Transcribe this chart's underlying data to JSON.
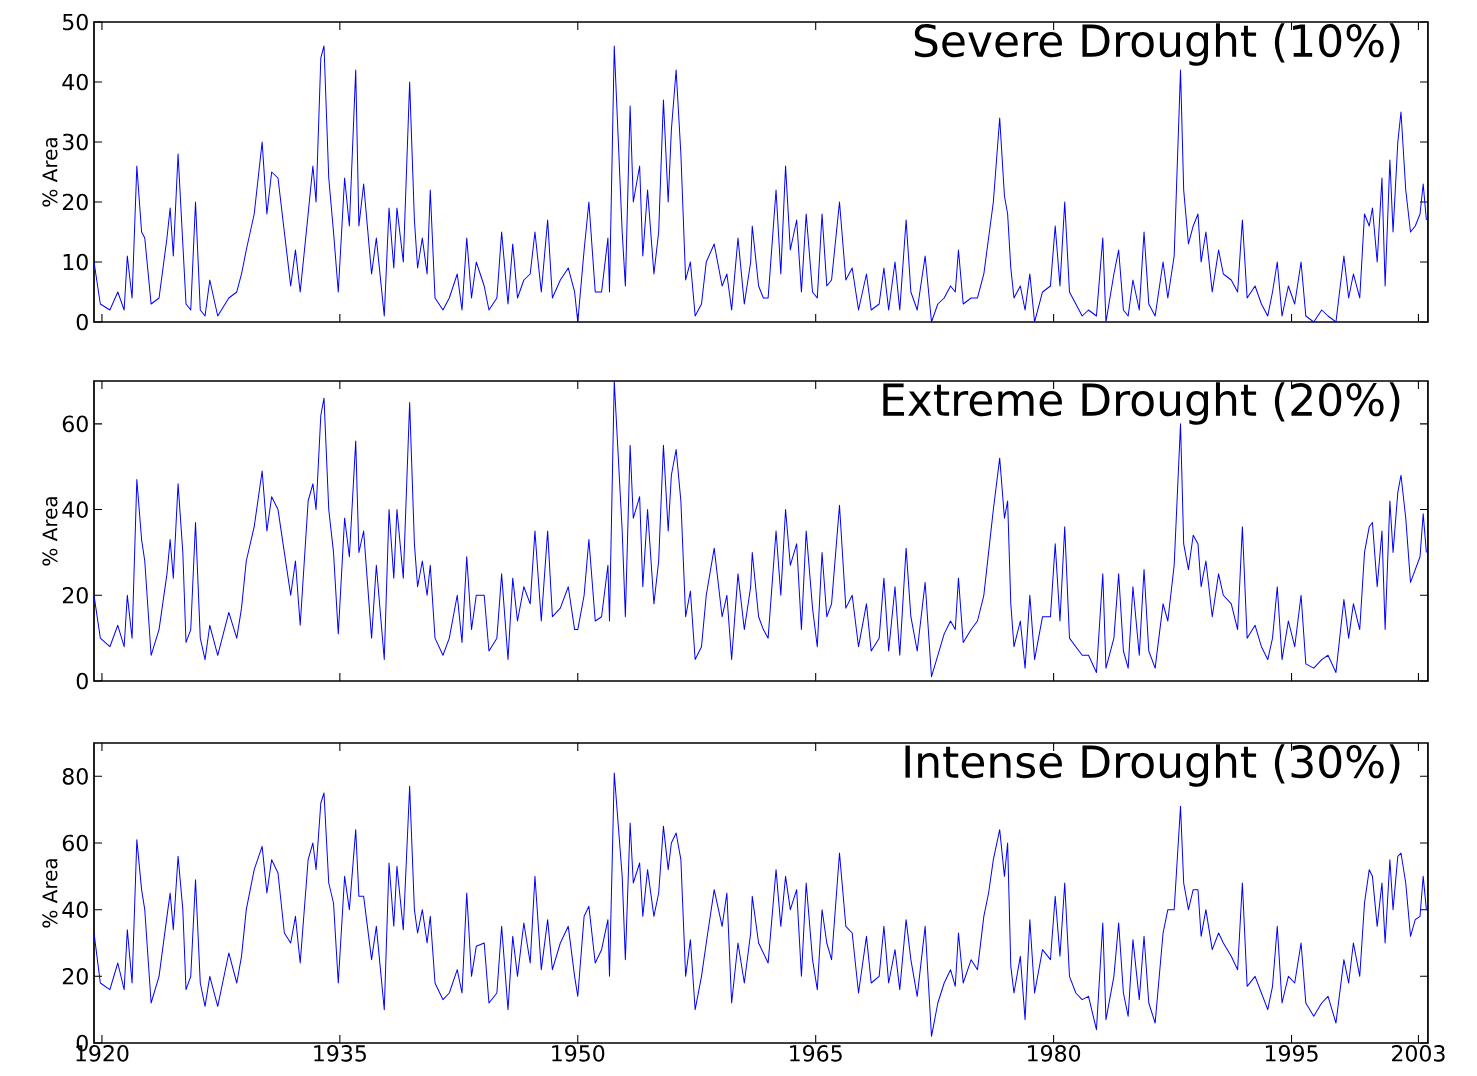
{
  "chart_data": [
    {
      "type": "line",
      "title": "Severe Drought (10%)",
      "ylabel": "% Area",
      "xlim": [
        1919.5,
        2003.6
      ],
      "ylim": [
        0,
        50
      ],
      "xticks": [
        1920,
        1935,
        1950,
        1965,
        1980,
        1995,
        2003
      ],
      "yticks": [
        0,
        10,
        20,
        30,
        40,
        50
      ],
      "tick_labels": "y",
      "x": [
        1919.5,
        1919.9,
        1920.5,
        1921.0,
        1921.4,
        1921.6,
        1921.9,
        1922.2,
        1922.5,
        1922.7,
        1923.1,
        1923.6,
        1924.1,
        1924.3,
        1924.5,
        1924.8,
        1925.1,
        1925.3,
        1925.6,
        1925.9,
        1926.2,
        1926.5,
        1926.8,
        1927.3,
        1928.0,
        1928.5,
        1928.8,
        1929.1,
        1929.6,
        1930.1,
        1930.4,
        1930.7,
        1931.1,
        1931.5,
        1931.9,
        1932.2,
        1932.5,
        1933.0,
        1933.3,
        1933.5,
        1933.8,
        1934.0,
        1934.3,
        1934.6,
        1934.9,
        1935.3,
        1935.6,
        1936.0,
        1936.2,
        1936.5,
        1937.0,
        1937.3,
        1937.8,
        1938.1,
        1938.4,
        1938.6,
        1939.0,
        1939.4,
        1939.7,
        1939.9,
        1940.2,
        1940.5,
        1940.7,
        1941.0,
        1941.5,
        1941.9,
        1942.4,
        1942.7,
        1943.0,
        1943.3,
        1943.6,
        1944.1,
        1944.4,
        1944.9,
        1945.2,
        1945.6,
        1945.9,
        1946.2,
        1946.6,
        1947.0,
        1947.3,
        1947.7,
        1948.1,
        1948.4,
        1948.9,
        1949.4,
        1949.8,
        1950.0,
        1950.4,
        1950.7,
        1951.1,
        1951.5,
        1951.9,
        1952.0,
        1952.3,
        1952.8,
        1953.0,
        1953.3,
        1953.5,
        1953.9,
        1954.1,
        1954.4,
        1954.8,
        1955.1,
        1955.4,
        1955.7,
        1955.9,
        1956.2,
        1956.5,
        1956.8,
        1957.1,
        1957.4,
        1957.8,
        1958.1,
        1958.6,
        1959.1,
        1959.4,
        1959.7,
        1960.1,
        1960.5,
        1960.9,
        1961.0,
        1961.4,
        1961.7,
        1962.0,
        1962.5,
        1962.8,
        1963.1,
        1963.4,
        1963.8,
        1964.1,
        1964.4,
        1964.8,
        1965.1,
        1965.4,
        1965.7,
        1966.0,
        1966.5,
        1966.9,
        1967.3,
        1967.7,
        1968.2,
        1968.5,
        1969.0,
        1969.3,
        1969.6,
        1970.0,
        1970.3,
        1970.7,
        1971.0,
        1971.4,
        1971.9,
        1972.3,
        1972.7,
        1973.1,
        1973.5,
        1973.8,
        1974.0,
        1974.3,
        1974.8,
        1975.2,
        1975.6,
        1975.9,
        1976.2,
        1976.6,
        1976.9,
        1977.1,
        1977.3,
        1977.5,
        1977.9,
        1978.2,
        1978.5,
        1978.8,
        1979.3,
        1979.8,
        1980.1,
        1980.4,
        1980.7,
        1981.0,
        1981.4,
        1981.8,
        1982.2,
        1982.7,
        1983.1,
        1983.3,
        1983.8,
        1984.1,
        1984.4,
        1984.7,
        1985.0,
        1985.4,
        1985.7,
        1986.0,
        1986.4,
        1986.9,
        1987.2,
        1987.6,
        1988.0,
        1988.2,
        1988.5,
        1988.8,
        1989.1,
        1989.3,
        1989.6,
        1990.0,
        1990.4,
        1990.7,
        1991.2,
        1991.6,
        1991.9,
        1992.2,
        1992.7,
        1993.1,
        1993.5,
        1993.8,
        1994.1,
        1994.4,
        1994.8,
        1995.2,
        1995.6,
        1995.9,
        1996.4,
        1996.9,
        1997.3,
        1997.8,
        1998.3,
        1998.6,
        1998.9,
        1999.3,
        1999.6,
        1999.9,
        2000.1,
        2000.4,
        2000.7,
        2000.9,
        2001.2,
        2001.4,
        2001.7,
        2001.9,
        2002.2,
        2002.5,
        2002.8,
        2003.1,
        2003.3,
        2003.5
      ],
      "series": [
        {
          "color": "#0000ff",
          "values": [
            10,
            3,
            2,
            5,
            2,
            11,
            4,
            26,
            15,
            14,
            3,
            4,
            14,
            19,
            11,
            28,
            13,
            3,
            2,
            20,
            2,
            1,
            7,
            1,
            4,
            5,
            8,
            12,
            18,
            30,
            18,
            25,
            24,
            15,
            6,
            12,
            5,
            18,
            26,
            20,
            44,
            46,
            24,
            15,
            5,
            24,
            16,
            42,
            16,
            23,
            8,
            14,
            1,
            19,
            9,
            19,
            10,
            40,
            17,
            9,
            14,
            8,
            22,
            4,
            2,
            4,
            8,
            2,
            14,
            4,
            10,
            6,
            2,
            4,
            15,
            3,
            13,
            4,
            7,
            8,
            15,
            5,
            17,
            4,
            7,
            9,
            5,
            0,
            12,
            20,
            5,
            5,
            14,
            5,
            46,
            15,
            6,
            36,
            20,
            26,
            11,
            22,
            8,
            15,
            37,
            20,
            32,
            42,
            28,
            7,
            10,
            1,
            3,
            10,
            13,
            6,
            8,
            2,
            14,
            3,
            10,
            16,
            6,
            4,
            4,
            22,
            8,
            26,
            12,
            17,
            5,
            18,
            5,
            4,
            18,
            6,
            7,
            20,
            7,
            9,
            2,
            8,
            2,
            3,
            9,
            2,
            10,
            2,
            17,
            5,
            2,
            11,
            0,
            3,
            4,
            6,
            5,
            12,
            3,
            4,
            4,
            8,
            14,
            20,
            34,
            21,
            18,
            9,
            4,
            6,
            2,
            8,
            0,
            5,
            6,
            16,
            6,
            20,
            5,
            3,
            1,
            2,
            1,
            14,
            0,
            8,
            12,
            2,
            1,
            7,
            2,
            15,
            3,
            1,
            10,
            4,
            11,
            42,
            22,
            13,
            16,
            18,
            10,
            15,
            5,
            12,
            8,
            7,
            5,
            17,
            4,
            6,
            3,
            1,
            5,
            10,
            1,
            6,
            3,
            10,
            1,
            0,
            2,
            1,
            0,
            11,
            4,
            8,
            4,
            18,
            16,
            19,
            10,
            24,
            6,
            27,
            15,
            30,
            35,
            22,
            15,
            16,
            18,
            23,
            17
          ]
        }
      ]
    },
    {
      "type": "line",
      "title": "Extreme Drought (20%)",
      "ylabel": "% Area",
      "xlim": [
        1919.5,
        2003.6
      ],
      "ylim": [
        0,
        70
      ],
      "xticks": [
        1920,
        1935,
        1950,
        1965,
        1980,
        1995,
        2003
      ],
      "yticks": [
        0,
        20,
        40,
        60
      ],
      "tick_labels": "y",
      "x": [
        1919.5,
        1919.9,
        1920.5,
        1921.0,
        1921.4,
        1921.6,
        1921.9,
        1922.2,
        1922.5,
        1922.7,
        1923.1,
        1923.6,
        1924.1,
        1924.3,
        1924.5,
        1924.8,
        1925.1,
        1925.3,
        1925.6,
        1925.9,
        1926.2,
        1926.5,
        1926.8,
        1927.3,
        1928.0,
        1928.5,
        1928.8,
        1929.1,
        1929.6,
        1930.1,
        1930.4,
        1930.7,
        1931.1,
        1931.5,
        1931.9,
        1932.2,
        1932.5,
        1933.0,
        1933.3,
        1933.5,
        1933.8,
        1934.0,
        1934.3,
        1934.6,
        1934.9,
        1935.3,
        1935.6,
        1936.0,
        1936.2,
        1936.5,
        1937.0,
        1937.3,
        1937.8,
        1938.1,
        1938.4,
        1938.6,
        1939.0,
        1939.4,
        1939.7,
        1939.9,
        1940.2,
        1940.5,
        1940.7,
        1941.0,
        1941.5,
        1941.9,
        1942.4,
        1942.7,
        1943.0,
        1943.3,
        1943.6,
        1944.1,
        1944.4,
        1944.9,
        1945.2,
        1945.6,
        1945.9,
        1946.2,
        1946.6,
        1947.0,
        1947.3,
        1947.7,
        1948.1,
        1948.4,
        1948.9,
        1949.4,
        1949.8,
        1950.0,
        1950.4,
        1950.7,
        1951.1,
        1951.5,
        1951.9,
        1952.0,
        1952.3,
        1952.8,
        1953.0,
        1953.3,
        1953.5,
        1953.9,
        1954.1,
        1954.4,
        1954.8,
        1955.1,
        1955.4,
        1955.7,
        1955.9,
        1956.2,
        1956.5,
        1956.8,
        1957.1,
        1957.4,
        1957.8,
        1958.1,
        1958.6,
        1959.1,
        1959.4,
        1959.7,
        1960.1,
        1960.5,
        1960.9,
        1961.0,
        1961.4,
        1961.7,
        1962.0,
        1962.5,
        1962.8,
        1963.1,
        1963.4,
        1963.8,
        1964.1,
        1964.4,
        1964.8,
        1965.1,
        1965.4,
        1965.7,
        1966.0,
        1966.5,
        1966.9,
        1967.3,
        1967.7,
        1968.2,
        1968.5,
        1969.0,
        1969.3,
        1969.6,
        1970.0,
        1970.3,
        1970.7,
        1971.0,
        1971.4,
        1971.9,
        1972.3,
        1972.7,
        1973.1,
        1973.5,
        1973.8,
        1974.0,
        1974.3,
        1974.8,
        1975.2,
        1975.6,
        1975.9,
        1976.2,
        1976.6,
        1976.9,
        1977.1,
        1977.3,
        1977.5,
        1977.9,
        1978.2,
        1978.5,
        1978.8,
        1979.3,
        1979.8,
        1980.1,
        1980.4,
        1980.7,
        1981.0,
        1981.4,
        1981.8,
        1982.2,
        1982.7,
        1983.1,
        1983.3,
        1983.8,
        1984.1,
        1984.4,
        1984.7,
        1985.0,
        1985.4,
        1985.7,
        1986.0,
        1986.4,
        1986.9,
        1987.2,
        1987.6,
        1988.0,
        1988.2,
        1988.5,
        1988.8,
        1989.1,
        1989.3,
        1989.6,
        1990.0,
        1990.4,
        1990.7,
        1991.2,
        1991.6,
        1991.9,
        1992.2,
        1992.7,
        1993.1,
        1993.5,
        1993.8,
        1994.1,
        1994.4,
        1994.8,
        1995.2,
        1995.6,
        1995.9,
        1996.4,
        1996.9,
        1997.3,
        1997.8,
        1998.3,
        1998.6,
        1998.9,
        1999.3,
        1999.6,
        1999.9,
        2000.1,
        2000.4,
        2000.7,
        2000.9,
        2001.2,
        2001.4,
        2001.7,
        2001.9,
        2002.2,
        2002.5,
        2002.8,
        2003.1,
        2003.3,
        2003.5
      ],
      "series": [
        {
          "color": "#0000ff",
          "values": [
            20,
            10,
            8,
            13,
            8,
            20,
            10,
            47,
            33,
            28,
            6,
            12,
            25,
            33,
            24,
            46,
            30,
            9,
            12,
            37,
            10,
            5,
            13,
            6,
            16,
            10,
            17,
            28,
            36,
            49,
            35,
            43,
            40,
            30,
            20,
            28,
            13,
            42,
            46,
            40,
            62,
            66,
            40,
            30,
            11,
            38,
            29,
            56,
            30,
            35,
            10,
            27,
            5,
            40,
            24,
            40,
            24,
            65,
            32,
            22,
            28,
            20,
            27,
            10,
            6,
            10,
            20,
            9,
            29,
            12,
            20,
            20,
            7,
            10,
            25,
            5,
            24,
            14,
            22,
            18,
            35,
            14,
            35,
            15,
            17,
            22,
            12,
            12,
            20,
            33,
            14,
            15,
            27,
            14,
            70,
            35,
            15,
            55,
            38,
            43,
            22,
            40,
            18,
            28,
            55,
            35,
            48,
            54,
            42,
            15,
            21,
            5,
            8,
            20,
            31,
            15,
            20,
            5,
            25,
            12,
            22,
            30,
            15,
            12,
            10,
            35,
            20,
            40,
            27,
            32,
            12,
            35,
            17,
            8,
            30,
            15,
            18,
            41,
            17,
            20,
            8,
            18,
            7,
            10,
            24,
            7,
            22,
            6,
            31,
            15,
            7,
            23,
            1,
            6,
            11,
            14,
            12,
            24,
            9,
            12,
            14,
            20,
            30,
            40,
            52,
            38,
            42,
            18,
            8,
            14,
            3,
            20,
            5,
            15,
            15,
            32,
            14,
            36,
            10,
            8,
            6,
            6,
            2,
            25,
            3,
            10,
            25,
            7,
            3,
            22,
            6,
            26,
            7,
            3,
            18,
            14,
            27,
            60,
            32,
            26,
            34,
            32,
            22,
            28,
            15,
            25,
            20,
            18,
            12,
            36,
            10,
            13,
            8,
            5,
            10,
            22,
            5,
            14,
            8,
            20,
            4,
            3,
            5,
            6,
            2,
            19,
            10,
            18,
            12,
            30,
            36,
            37,
            22,
            35,
            12,
            42,
            30,
            44,
            48,
            38,
            23,
            26,
            29,
            39,
            30
          ]
        }
      ]
    },
    {
      "type": "line",
      "title": "Intense Drought (30%)",
      "ylabel": "% Area",
      "xlim": [
        1919.5,
        2003.6
      ],
      "ylim": [
        0,
        90
      ],
      "xticks": [
        1920,
        1935,
        1950,
        1965,
        1980,
        1995,
        2003
      ],
      "yticks": [
        0,
        20,
        40,
        60,
        80
      ],
      "x": [
        1919.5,
        1919.9,
        1920.5,
        1921.0,
        1921.4,
        1921.6,
        1921.9,
        1922.2,
        1922.5,
        1922.7,
        1923.1,
        1923.6,
        1924.1,
        1924.3,
        1924.5,
        1924.8,
        1925.1,
        1925.3,
        1925.6,
        1925.9,
        1926.2,
        1926.5,
        1926.8,
        1927.3,
        1928.0,
        1928.5,
        1928.8,
        1929.1,
        1929.6,
        1930.1,
        1930.4,
        1930.7,
        1931.1,
        1931.5,
        1931.9,
        1932.2,
        1932.5,
        1933.0,
        1933.3,
        1933.5,
        1933.8,
        1934.0,
        1934.3,
        1934.6,
        1934.9,
        1935.3,
        1935.6,
        1936.0,
        1936.2,
        1936.5,
        1937.0,
        1937.3,
        1937.8,
        1938.1,
        1938.4,
        1938.6,
        1939.0,
        1939.4,
        1939.7,
        1939.9,
        1940.2,
        1940.5,
        1940.7,
        1941.0,
        1941.5,
        1941.9,
        1942.4,
        1942.7,
        1943.0,
        1943.3,
        1943.6,
        1944.1,
        1944.4,
        1944.9,
        1945.2,
        1945.6,
        1945.9,
        1946.2,
        1946.6,
        1947.0,
        1947.3,
        1947.7,
        1948.1,
        1948.4,
        1948.9,
        1949.4,
        1949.8,
        1950.0,
        1950.4,
        1950.7,
        1951.1,
        1951.5,
        1951.9,
        1952.0,
        1952.3,
        1952.8,
        1953.0,
        1953.3,
        1953.5,
        1953.9,
        1954.1,
        1954.4,
        1954.8,
        1955.1,
        1955.4,
        1955.7,
        1955.9,
        1956.2,
        1956.5,
        1956.8,
        1957.1,
        1957.4,
        1957.8,
        1958.1,
        1958.6,
        1959.1,
        1959.4,
        1959.7,
        1960.1,
        1960.5,
        1960.9,
        1961.0,
        1961.4,
        1961.7,
        1962.0,
        1962.5,
        1962.8,
        1963.1,
        1963.4,
        1963.8,
        1964.1,
        1964.4,
        1964.8,
        1965.1,
        1965.4,
        1965.7,
        1966.0,
        1966.5,
        1966.9,
        1967.3,
        1967.7,
        1968.2,
        1968.5,
        1969.0,
        1969.3,
        1969.6,
        1970.0,
        1970.3,
        1970.7,
        1971.0,
        1971.4,
        1971.9,
        1972.3,
        1972.7,
        1973.1,
        1973.5,
        1973.8,
        1974.0,
        1974.3,
        1974.8,
        1975.2,
        1975.6,
        1975.9,
        1976.2,
        1976.6,
        1976.9,
        1977.1,
        1977.3,
        1977.5,
        1977.9,
        1978.2,
        1978.5,
        1978.8,
        1979.3,
        1979.8,
        1980.1,
        1980.4,
        1980.7,
        1981.0,
        1981.4,
        1981.8,
        1982.2,
        1982.7,
        1983.1,
        1983.3,
        1983.8,
        1984.1,
        1984.4,
        1984.7,
        1985.0,
        1985.4,
        1985.7,
        1986.0,
        1986.4,
        1986.9,
        1987.2,
        1987.6,
        1988.0,
        1988.2,
        1988.5,
        1988.8,
        1989.1,
        1989.3,
        1989.6,
        1990.0,
        1990.4,
        1990.7,
        1991.2,
        1991.6,
        1991.9,
        1992.2,
        1992.7,
        1993.1,
        1993.5,
        1993.8,
        1994.1,
        1994.4,
        1994.8,
        1995.2,
        1995.6,
        1995.9,
        1996.4,
        1996.9,
        1997.3,
        1997.8,
        1998.3,
        1998.6,
        1998.9,
        1999.3,
        1999.6,
        1999.9,
        2000.1,
        2000.4,
        2000.7,
        2000.9,
        2001.2,
        2001.4,
        2001.7,
        2001.9,
        2002.2,
        2002.5,
        2002.8,
        2003.1,
        2003.3,
        2003.5
      ],
      "series": [
        {
          "color": "#0000ff",
          "values": [
            33,
            18,
            16,
            24,
            16,
            34,
            18,
            61,
            46,
            40,
            12,
            20,
            38,
            45,
            34,
            56,
            40,
            16,
            20,
            49,
            18,
            11,
            20,
            11,
            27,
            18,
            26,
            40,
            52,
            59,
            45,
            55,
            51,
            33,
            30,
            38,
            24,
            55,
            60,
            52,
            72,
            75,
            48,
            42,
            18,
            50,
            40,
            64,
            44,
            44,
            25,
            35,
            10,
            54,
            35,
            53,
            34,
            77,
            40,
            33,
            40,
            30,
            38,
            18,
            13,
            15,
            22,
            15,
            45,
            20,
            29,
            30,
            12,
            15,
            35,
            10,
            32,
            20,
            36,
            24,
            50,
            22,
            37,
            22,
            30,
            35,
            20,
            14,
            38,
            41,
            24,
            28,
            37,
            20,
            81,
            50,
            25,
            66,
            48,
            54,
            38,
            52,
            38,
            45,
            65,
            52,
            60,
            63,
            55,
            20,
            31,
            10,
            20,
            30,
            46,
            35,
            45,
            12,
            30,
            18,
            33,
            44,
            30,
            27,
            24,
            52,
            35,
            50,
            40,
            46,
            20,
            48,
            25,
            16,
            40,
            30,
            25,
            57,
            35,
            33,
            15,
            32,
            18,
            20,
            35,
            18,
            28,
            16,
            37,
            25,
            14,
            35,
            2,
            12,
            18,
            22,
            17,
            33,
            18,
            25,
            22,
            38,
            45,
            55,
            64,
            50,
            60,
            23,
            15,
            26,
            7,
            37,
            15,
            28,
            25,
            44,
            26,
            48,
            20,
            15,
            13,
            14,
            4,
            36,
            7,
            20,
            36,
            15,
            8,
            31,
            13,
            32,
            12,
            6,
            33,
            40,
            40,
            71,
            48,
            40,
            46,
            46,
            32,
            40,
            28,
            33,
            30,
            26,
            22,
            48,
            17,
            20,
            15,
            10,
            17,
            35,
            12,
            20,
            18,
            30,
            12,
            8,
            12,
            14,
            6,
            25,
            18,
            30,
            20,
            42,
            52,
            50,
            35,
            48,
            30,
            55,
            40,
            56,
            57,
            48,
            32,
            37,
            38,
            50,
            40
          ]
        }
      ]
    }
  ]
}
